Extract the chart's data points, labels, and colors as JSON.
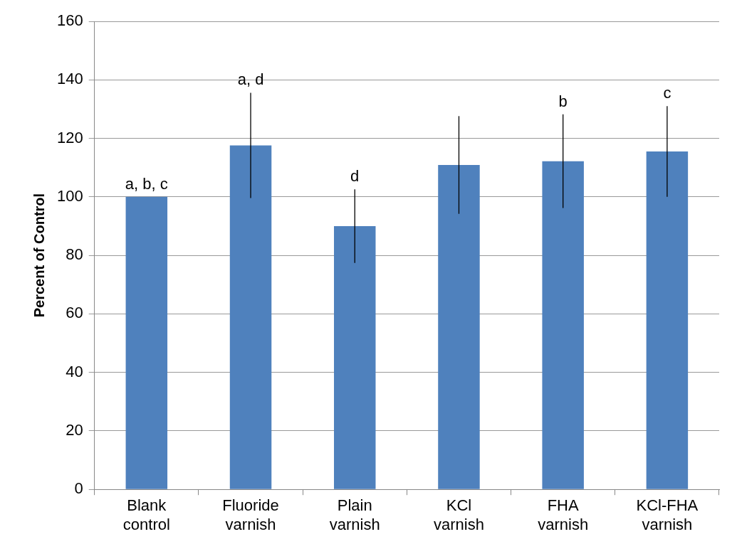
{
  "chart_data": {
    "type": "bar",
    "ylabel": "Percent of Control",
    "categories": [
      "Blank control",
      "Fluoride varnish",
      "Plain varnish",
      "KCl varnish",
      "FHA varnish",
      "KCl-FHA varnish"
    ],
    "values": [
      100,
      117.6,
      90,
      110.9,
      112.2,
      115.5
    ],
    "errors": [
      null,
      18,
      12.6,
      16.7,
      16,
      15.5
    ],
    "color": "#4f81bd",
    "ylim": [
      0,
      160
    ],
    "yticks": [
      0,
      20,
      40,
      60,
      80,
      100,
      120,
      140,
      160
    ],
    "grid": "y",
    "annotations": [
      {
        "text": "a, b, c",
        "x": "Blank control",
        "y": 100
      },
      {
        "text": "a, d",
        "x": "Fluoride varnish",
        "y": 135.6
      },
      {
        "text": "d",
        "x": "Plain varnish",
        "y": 102.6
      },
      {
        "text": "b",
        "x": "FHA varnish",
        "y": 128.2
      },
      {
        "text": "c",
        "x": "KCl-FHA varnish",
        "y": 131
      }
    ]
  }
}
